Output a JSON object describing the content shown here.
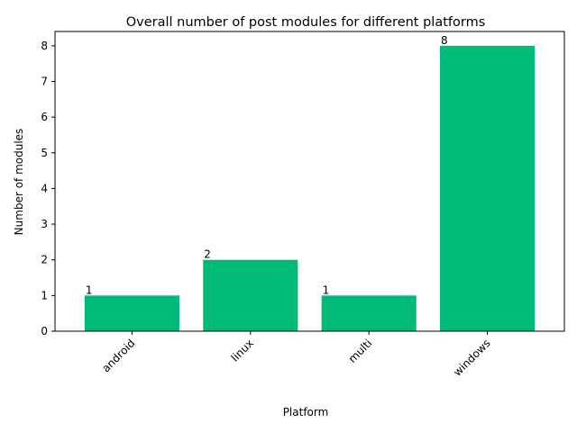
{
  "chart_data": {
    "type": "bar",
    "title": "Overall number of post modules for different platforms",
    "xlabel": "Platform",
    "ylabel": "Number of modules",
    "categories": [
      "android",
      "linux",
      "multi",
      "windows"
    ],
    "values": [
      1,
      2,
      1,
      8
    ],
    "data_labels": [
      "1",
      "2",
      "1",
      "8"
    ],
    "ylim": [
      0,
      8.4
    ],
    "yticks": [
      0,
      1,
      2,
      3,
      4,
      5,
      6,
      7,
      8
    ],
    "bar_color": "#00bb77",
    "grid": false,
    "legend": "none"
  }
}
